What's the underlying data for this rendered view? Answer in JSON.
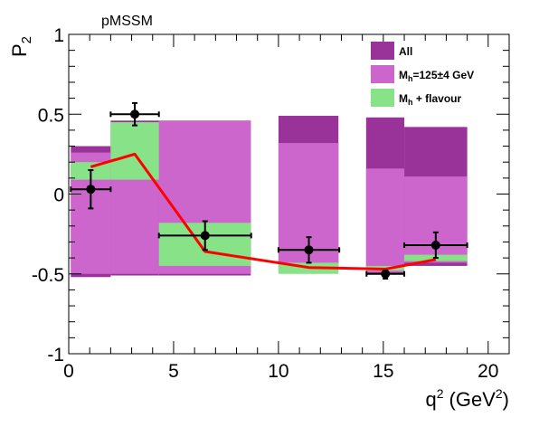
{
  "chart_data": {
    "type": "bar",
    "title": "pMSSM",
    "ylabel": "P",
    "ylabel_sub": "2",
    "xlabel": "q",
    "xlabel_sup": "2",
    "xlabel_units": "(GeV",
    "xlabel_units_sup": "2",
    "xlabel_close": ")",
    "xlim": [
      0,
      21
    ],
    "ylim": [
      -1,
      1
    ],
    "x_ticks": [
      0,
      5,
      10,
      15,
      20
    ],
    "x_tick_labels": [
      "0",
      "5",
      "10",
      "15",
      "20"
    ],
    "y_ticks": [
      -1,
      -0.5,
      0,
      0.5,
      1
    ],
    "y_tick_labels": [
      "-1",
      "-0.5",
      "0",
      "0.5",
      "1"
    ],
    "legend_position": "top-right",
    "grid": false,
    "series": [
      {
        "name": "All",
        "label_main": "All",
        "label_sub": "",
        "label_rest": "",
        "color": "#993399",
        "bins": [
          {
            "x0": 0.1,
            "x1": 2,
            "ymin": -0.52,
            "ymax": 0.3
          },
          {
            "x0": 2,
            "x1": 4.3,
            "ymin": -0.51,
            "ymax": 0.46
          },
          {
            "x0": 4.3,
            "x1": 8.68,
            "ymin": -0.51,
            "ymax": 0.46
          },
          {
            "x0": 10,
            "x1": 12.86,
            "ymin": -0.48,
            "ymax": 0.49
          },
          {
            "x0": 14.18,
            "x1": 16,
            "ymin": -0.5,
            "ymax": 0.48
          },
          {
            "x0": 16,
            "x1": 19,
            "ymin": -0.45,
            "ymax": 0.42
          }
        ]
      },
      {
        "name": "M_h=125±4 GeV",
        "label_main": "M",
        "label_sub": "h",
        "label_rest": "=125±4 GeV",
        "color": "#cc66cc",
        "bins": [
          {
            "x0": 0.1,
            "x1": 2,
            "ymin": -0.5,
            "ymax": 0.26
          },
          {
            "x0": 2,
            "x1": 4.3,
            "ymin": -0.5,
            "ymax": 0.44
          },
          {
            "x0": 4.3,
            "x1": 8.68,
            "ymin": -0.5,
            "ymax": 0.46
          },
          {
            "x0": 10,
            "x1": 12.86,
            "ymin": -0.47,
            "ymax": 0.32
          },
          {
            "x0": 14.18,
            "x1": 16,
            "ymin": -0.49,
            "ymax": 0.16
          },
          {
            "x0": 16,
            "x1": 19,
            "ymin": -0.43,
            "ymax": 0.11
          }
        ]
      },
      {
        "name": "M_h + flavour",
        "label_main": "M",
        "label_sub": "h",
        "label_rest": " + flavour",
        "color": "#88e288",
        "bins": [
          {
            "x0": 0.1,
            "x1": 2,
            "ymin": 0.09,
            "ymax": 0.2
          },
          {
            "x0": 2,
            "x1": 4.3,
            "ymin": 0.09,
            "ymax": 0.45
          },
          {
            "x0": 4.3,
            "x1": 8.68,
            "ymin": -0.45,
            "ymax": -0.18
          },
          {
            "x0": 10,
            "x1": 12.86,
            "ymin": -0.5,
            "ymax": -0.43
          },
          {
            "x0": 14.18,
            "x1": 16,
            "ymin": -0.48,
            "ymax": -0.45
          },
          {
            "x0": 16,
            "x1": 19,
            "ymin": -0.42,
            "ymax": -0.38
          }
        ]
      }
    ],
    "prediction_line": {
      "color": "#ff0000",
      "x": [
        1.05,
        3.15,
        6.5,
        11.45,
        15.1,
        17.5
      ],
      "y": [
        0.17,
        0.25,
        -0.36,
        -0.46,
        -0.47,
        -0.41
      ]
    },
    "data_points": {
      "color": "#000000",
      "x": [
        1.05,
        3.15,
        6.5,
        11.45,
        15.1,
        17.5
      ],
      "y": [
        0.03,
        0.5,
        -0.26,
        -0.35,
        -0.5,
        -0.32
      ],
      "x_err_low": [
        0.95,
        1.15,
        2.2,
        1.45,
        0.9,
        1.5
      ],
      "x_err_high": [
        0.95,
        1.15,
        2.2,
        1.45,
        0.9,
        1.5
      ],
      "y_err_low": [
        0.12,
        0.07,
        0.09,
        0.08,
        0.03,
        0.08
      ],
      "y_err_high": [
        0.12,
        0.07,
        0.09,
        0.08,
        0.02,
        0.08
      ]
    }
  }
}
